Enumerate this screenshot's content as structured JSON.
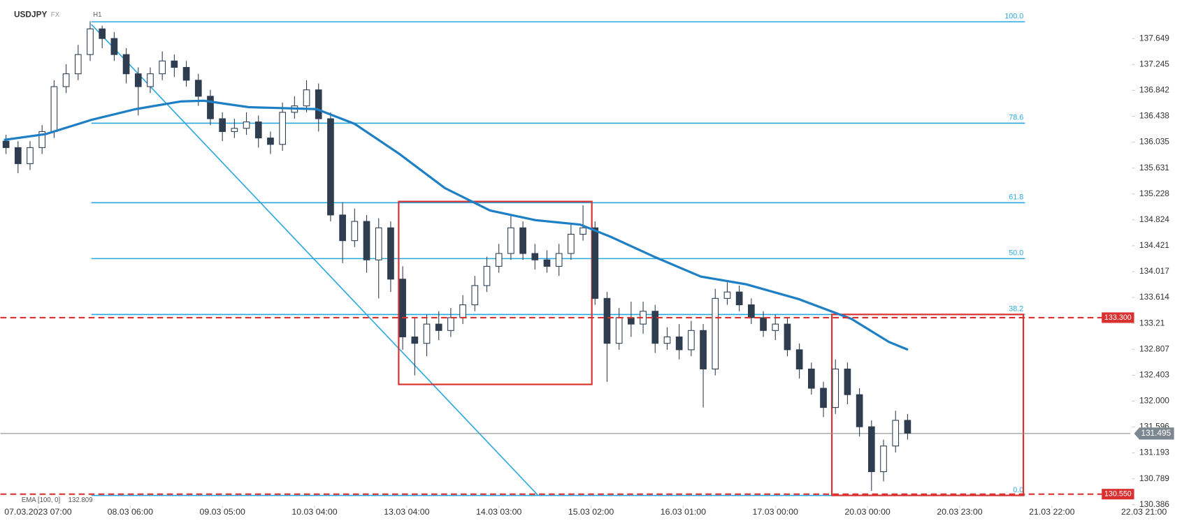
{
  "chart_data": {
    "type": "candlestick",
    "symbol": "USDJPY",
    "market": "FX",
    "timeframe": "H1",
    "x": [
      0,
      3,
      6,
      9,
      12,
      15,
      18,
      21,
      24,
      27,
      30,
      33,
      36,
      39,
      42,
      45,
      48,
      51,
      54,
      57,
      60,
      63,
      66,
      69,
      72,
      75,
      78,
      81,
      84,
      87,
      90,
      93,
      96,
      99,
      102,
      105,
      108,
      111,
      114,
      117,
      120,
      123,
      126,
      129,
      132,
      135,
      138,
      141,
      144,
      147,
      150,
      153,
      156,
      159,
      162,
      165,
      168,
      171,
      174,
      177,
      180,
      183,
      186,
      189,
      192,
      195,
      198,
      201,
      204,
      207,
      210,
      213,
      216,
      219,
      222,
      225
    ],
    "open": [
      136.05,
      135.95,
      135.7,
      135.95,
      136.2,
      136.9,
      137.1,
      137.4,
      137.8,
      137.65,
      137.4,
      137.1,
      136.9,
      137.1,
      137.3,
      137.2,
      137.0,
      136.75,
      136.4,
      136.2,
      136.25,
      136.35,
      136.1,
      136.0,
      136.5,
      136.6,
      136.85,
      136.4,
      134.9,
      134.5,
      134.8,
      134.2,
      134.7,
      133.9,
      133.0,
      132.9,
      133.2,
      133.1,
      133.3,
      133.5,
      133.8,
      134.1,
      134.3,
      134.7,
      134.3,
      134.2,
      134.1,
      134.3,
      134.6,
      134.7,
      133.6,
      132.9,
      133.3,
      133.2,
      133.4,
      132.9,
      133.0,
      132.8,
      133.1,
      132.5,
      133.6,
      133.7,
      133.5,
      133.3,
      133.1,
      133.2,
      132.8,
      132.5,
      132.2,
      131.9,
      132.5,
      132.1,
      131.6,
      130.9,
      131.3,
      131.7
    ],
    "high": [
      136.15,
      136.05,
      136.05,
      136.3,
      137.0,
      137.25,
      137.55,
      137.92,
      137.85,
      137.75,
      137.5,
      137.2,
      137.2,
      137.45,
      137.4,
      137.3,
      137.1,
      136.85,
      136.5,
      136.4,
      136.5,
      136.45,
      136.2,
      136.65,
      136.75,
      137.0,
      136.95,
      136.5,
      135.1,
      135.0,
      134.9,
      134.85,
      134.8,
      134.1,
      133.3,
      133.35,
      133.4,
      133.45,
      133.65,
      133.95,
      134.25,
      134.45,
      134.9,
      134.8,
      134.45,
      134.35,
      134.45,
      134.75,
      135.05,
      134.8,
      133.7,
      133.45,
      133.55,
      133.55,
      133.5,
      133.15,
      133.2,
      133.25,
      133.2,
      133.75,
      133.85,
      133.8,
      133.6,
      133.4,
      133.35,
      133.3,
      132.9,
      132.6,
      132.3,
      132.65,
      132.6,
      132.2,
      131.7,
      131.4,
      131.85,
      131.8
    ],
    "low": [
      135.85,
      135.55,
      135.6,
      135.85,
      136.1,
      136.8,
      137.0,
      137.3,
      137.5,
      137.3,
      136.95,
      136.45,
      136.8,
      137.0,
      137.05,
      136.9,
      136.6,
      136.3,
      136.05,
      136.1,
      136.15,
      135.95,
      135.85,
      135.9,
      136.4,
      136.5,
      136.2,
      134.8,
      134.15,
      134.4,
      134.0,
      133.6,
      133.7,
      132.8,
      132.4,
      132.7,
      132.95,
      133.0,
      133.2,
      133.4,
      133.7,
      134.0,
      134.2,
      134.2,
      134.05,
      134.0,
      133.95,
      134.2,
      134.5,
      133.5,
      132.3,
      132.8,
      133.0,
      133.05,
      132.75,
      132.8,
      132.65,
      132.7,
      131.9,
      132.4,
      133.5,
      133.4,
      133.2,
      133.0,
      132.95,
      132.7,
      132.35,
      132.1,
      131.75,
      131.8,
      131.95,
      131.45,
      130.6,
      130.75,
      131.2,
      131.4
    ],
    "close": [
      135.95,
      135.7,
      135.95,
      136.2,
      136.9,
      137.1,
      137.4,
      137.8,
      137.65,
      137.4,
      137.1,
      136.9,
      137.1,
      137.3,
      137.2,
      137.0,
      136.75,
      136.4,
      136.2,
      136.25,
      136.35,
      136.1,
      136.0,
      136.5,
      136.6,
      136.85,
      136.4,
      134.9,
      134.5,
      134.8,
      134.2,
      134.7,
      133.9,
      133.0,
      132.9,
      133.2,
      133.1,
      133.3,
      133.5,
      133.8,
      134.1,
      134.3,
      134.7,
      134.3,
      134.2,
      134.1,
      134.3,
      134.6,
      134.7,
      133.6,
      132.9,
      133.3,
      133.2,
      133.4,
      132.9,
      133.0,
      132.8,
      133.1,
      132.5,
      133.6,
      133.7,
      133.5,
      133.3,
      133.1,
      133.2,
      132.8,
      132.5,
      132.2,
      131.9,
      132.5,
      132.1,
      131.6,
      130.9,
      131.3,
      131.7,
      131.5
    ],
    "up_color": "#ffffff",
    "down_color": "#2e3d4f",
    "xlim": [
      -1.4,
      280.6
    ],
    "xticks": [
      {
        "value": 8,
        "label": "07.03.2023 07:00"
      },
      {
        "value": 31,
        "label": "08.03 06:00"
      },
      {
        "value": 54,
        "label": "09.03 05:00"
      },
      {
        "value": 77,
        "label": "10.03 04:00"
      },
      {
        "value": 100,
        "label": "13.03 04:00"
      },
      {
        "value": 123,
        "label": "14.03 03:00"
      },
      {
        "value": 146,
        "label": "15.03 02:00"
      },
      {
        "value": 169,
        "label": "16.03 01:00"
      },
      {
        "value": 192,
        "label": "17.03 00:00"
      },
      {
        "value": 215,
        "label": "20.03 00:00"
      },
      {
        "value": 238,
        "label": "20.03 23:00"
      },
      {
        "value": 261,
        "label": "21.03 22:00"
      },
      {
        "value": 284,
        "label": "22.03 21:00"
      }
    ],
    "ylim": [
      130.37,
      138.25
    ],
    "yticks": [
      137.649,
      137.245,
      136.842,
      136.438,
      136.035,
      135.631,
      135.228,
      134.824,
      134.421,
      134.017,
      133.614,
      133.21,
      132.807,
      132.403,
      {
        "value": 132,
        "label": "132.000"
      },
      131.596,
      131.193,
      130.789,
      130.386
    ],
    "ema": {
      "label": "EMA [100, 0]",
      "value": 132.809,
      "color": "#1f7fc4",
      "x": [
        -0.5,
        9.9,
        21.2,
        32.4,
        43.7,
        49.4,
        60.6,
        77.5,
        87.0,
        98.2,
        109.5,
        120.8,
        132.1,
        143.3,
        150.9,
        162.1,
        173.4,
        184.7,
        197.8,
        211.0,
        220.4,
        225.1
      ],
      "values": [
        136.07,
        136.16,
        136.38,
        136.55,
        136.67,
        136.68,
        136.58,
        136.55,
        136.32,
        135.85,
        135.32,
        134.97,
        134.82,
        134.75,
        134.56,
        134.24,
        133.94,
        133.82,
        133.59,
        133.28,
        132.92,
        132.8
      ]
    },
    "fibonacci": {
      "high": 137.91,
      "low": 130.53,
      "x": [
        21.3,
        254.3
      ],
      "color": "#29a8e0",
      "levels": [
        {
          "value": 100,
          "label": "100.0"
        },
        78.6,
        {
          "value": 61.8,
          "label": "61.8"
        },
        {
          "value": 50,
          "label": "50.0"
        },
        38.2,
        {
          "value": 0,
          "label": "0.0"
        }
      ]
    },
    "trendline": {
      "x": [
        21.3,
        132.8
      ],
      "y": [
        137.87,
        130.53
      ],
      "color": "#29a8e0"
    },
    "boxes": [
      {
        "x": [
          98.0,
          146.2
        ],
        "y": [
          132.26,
          135.11
        ]
      },
      {
        "x": [
          206.1,
          253.9
        ],
        "y": [
          130.53,
          133.35
        ]
      }
    ],
    "levels": [
      {
        "value": 133.3,
        "label": "133.300"
      },
      {
        "value": 130.55,
        "label": "130.550"
      }
    ],
    "level_color": "#d93030",
    "last_price": 131.495
  }
}
